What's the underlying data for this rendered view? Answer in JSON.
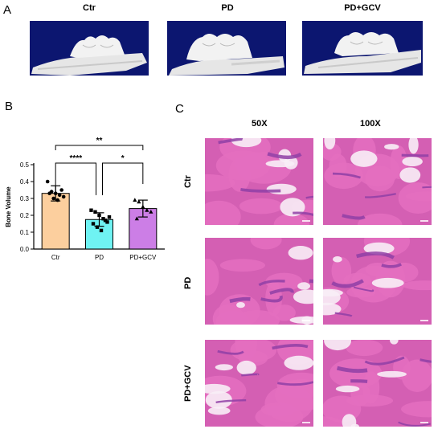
{
  "panels": {
    "a_label": "A",
    "b_label": "B",
    "c_label": "C"
  },
  "microct": {
    "titles": [
      "Ctr",
      "PD",
      "PD+GCV"
    ]
  },
  "histology": {
    "col_titles": [
      "50X",
      "100X"
    ],
    "row_titles": [
      "Ctr",
      "PD",
      "PD+GCV"
    ],
    "colors": {
      "pink": "#e46fc0",
      "purple": "#8f3fa6",
      "white": "#f8eef6"
    }
  },
  "chart_data": {
    "type": "bar",
    "ylabel": "Bone Volume",
    "categories": [
      "Ctr",
      "PD",
      "PD+GCV"
    ],
    "values": [
      0.33,
      0.175,
      0.24
    ],
    "errors": [
      0.045,
      0.04,
      0.05
    ],
    "ylim": [
      0.0,
      0.5
    ],
    "yticks": [
      "0.0",
      "0.1",
      "0.2",
      "0.3",
      "0.4",
      "0.5"
    ],
    "colors": [
      "#fccf9e",
      "#6ff3f3",
      "#cc7ee6"
    ],
    "points": [
      [
        0.4,
        0.34,
        0.33,
        0.32,
        0.31,
        0.33,
        0.3,
        0.29,
        0.35
      ],
      [
        0.23,
        0.22,
        0.2,
        0.18,
        0.16,
        0.15,
        0.13,
        0.11,
        0.17,
        0.19
      ],
      [
        0.29,
        0.28,
        0.25,
        0.23,
        0.22,
        0.18
      ]
    ],
    "significance": [
      {
        "from": "Ctr",
        "to": "PD+GCV",
        "label": "**"
      },
      {
        "from": "Ctr",
        "to": "PD",
        "label": "****"
      },
      {
        "from": "PD",
        "to": "PD+GCV",
        "label": "*"
      }
    ]
  }
}
